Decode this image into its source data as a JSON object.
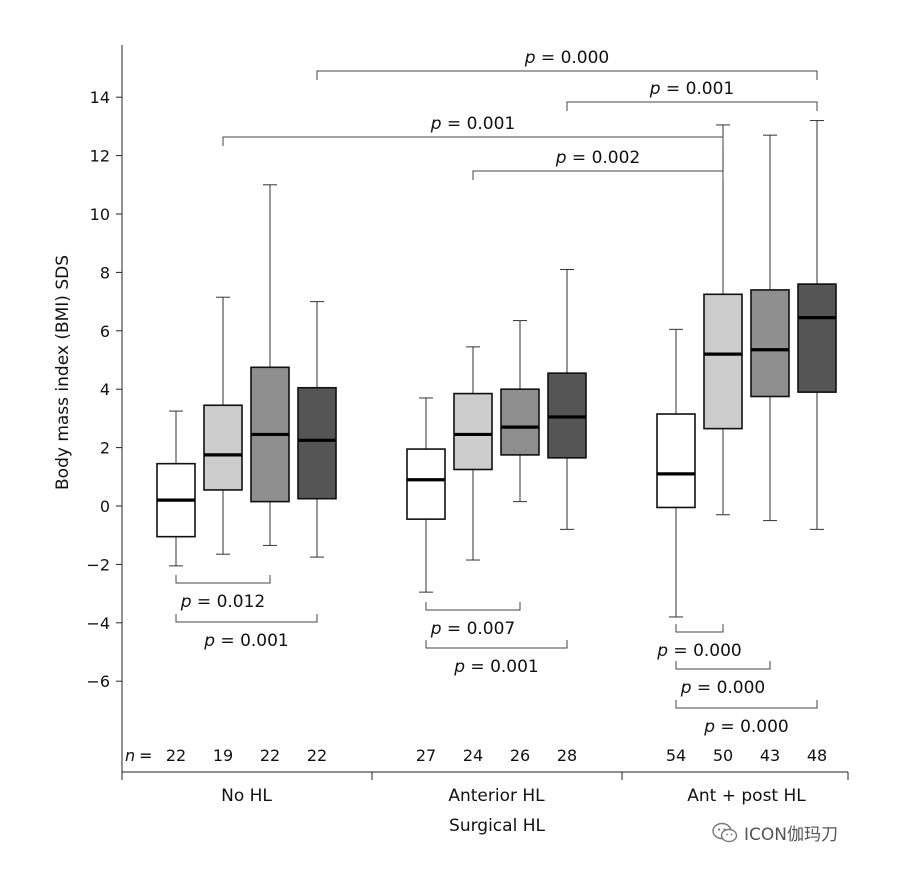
{
  "chart_data": {
    "type": "boxplot",
    "ylabel": "Body mass index (BMI) SDS",
    "xlabel": "Surgical HL",
    "ylim": [
      -8.5,
      15.5
    ],
    "yticks": [
      "−6",
      "−4",
      "−2",
      "0",
      "2",
      "4",
      "6",
      "8",
      "10",
      "12",
      "14"
    ],
    "ytick_values": [
      -6,
      -4,
      -2,
      0,
      2,
      4,
      6,
      8,
      10,
      12,
      14
    ],
    "n_label": "n =",
    "groups": [
      {
        "label": "No HL",
        "boxes": [
          {
            "n": "22",
            "fill": "#ffffff",
            "min": -2.05,
            "q1": -1.05,
            "median": 0.2,
            "q3": 1.45,
            "max": 3.25
          },
          {
            "n": "19",
            "fill": "#cccccc",
            "min": -1.65,
            "q1": 0.55,
            "median": 1.75,
            "q3": 3.45,
            "max": 7.15
          },
          {
            "n": "22",
            "fill": "#8f8f8f",
            "min": -1.35,
            "q1": 0.15,
            "median": 2.45,
            "q3": 4.75,
            "max": 11.0
          },
          {
            "n": "22",
            "fill": "#555555",
            "min": -1.75,
            "q1": 0.25,
            "median": 2.25,
            "q3": 4.05,
            "max": 7.0
          }
        ]
      },
      {
        "label": "Anterior HL",
        "boxes": [
          {
            "n": "27",
            "fill": "#ffffff",
            "min": -2.95,
            "q1": -0.45,
            "median": 0.9,
            "q3": 1.95,
            "max": 3.7
          },
          {
            "n": "24",
            "fill": "#cccccc",
            "min": -1.85,
            "q1": 1.25,
            "median": 2.45,
            "q3": 3.85,
            "max": 5.45
          },
          {
            "n": "26",
            "fill": "#8f8f8f",
            "min": 0.15,
            "q1": 1.75,
            "median": 2.7,
            "q3": 4.0,
            "max": 6.35
          },
          {
            "n": "28",
            "fill": "#555555",
            "min": -0.8,
            "q1": 1.65,
            "median": 3.05,
            "q3": 4.55,
            "max": 8.1
          }
        ]
      },
      {
        "label": "Ant + post HL",
        "boxes": [
          {
            "n": "54",
            "fill": "#ffffff",
            "min": -3.8,
            "q1": -0.05,
            "median": 1.1,
            "q3": 3.15,
            "max": 6.05
          },
          {
            "n": "50",
            "fill": "#cccccc",
            "min": -0.3,
            "q1": 2.65,
            "median": 5.2,
            "q3": 7.25,
            "max": 13.05
          },
          {
            "n": "43",
            "fill": "#8f8f8f",
            "min": -0.5,
            "q1": 3.75,
            "median": 5.35,
            "q3": 7.4,
            "max": 12.7
          },
          {
            "n": "48",
            "fill": "#555555",
            "min": -0.8,
            "q1": 3.9,
            "median": 6.45,
            "q3": 7.6,
            "max": 13.2
          }
        ]
      }
    ],
    "comparisons": [
      {
        "from": [
          0,
          0
        ],
        "to": [
          0,
          2
        ],
        "text": "p = 0.012",
        "side": "below",
        "level": 0
      },
      {
        "from": [
          0,
          0
        ],
        "to": [
          0,
          3
        ],
        "text": "p = 0.001",
        "side": "below",
        "level": 1
      },
      {
        "from": [
          1,
          0
        ],
        "to": [
          1,
          2
        ],
        "text": "p = 0.007",
        "side": "below",
        "level": 0
      },
      {
        "from": [
          1,
          0
        ],
        "to": [
          1,
          3
        ],
        "text": "p = 0.001",
        "side": "below",
        "level": 1
      },
      {
        "from": [
          2,
          0
        ],
        "to": [
          2,
          1
        ],
        "text": "p = 0.000",
        "side": "below",
        "level": 0
      },
      {
        "from": [
          2,
          0
        ],
        "to": [
          2,
          2
        ],
        "text": "p = 0.000",
        "side": "below",
        "level": 1
      },
      {
        "from": [
          2,
          0
        ],
        "to": [
          2,
          3
        ],
        "text": "p = 0.000",
        "side": "below",
        "level": 2
      },
      {
        "from": [
          1,
          1
        ],
        "to": [
          2,
          1
        ],
        "text": "p = 0.002",
        "side": "above",
        "level": 0
      },
      {
        "from": [
          0,
          1
        ],
        "to": [
          2,
          1
        ],
        "text": "p = 0.001",
        "side": "above",
        "level": 1
      },
      {
        "from": [
          1,
          3
        ],
        "to": [
          2,
          3
        ],
        "text": "p = 0.001",
        "side": "above",
        "level": 2
      },
      {
        "from": [
          0,
          3
        ],
        "to": [
          2,
          3
        ],
        "text": "p = 0.000",
        "side": "above",
        "level": 3
      }
    ]
  },
  "watermark": {
    "text": "ICON伽玛刀",
    "icon": "wechat-icon"
  }
}
